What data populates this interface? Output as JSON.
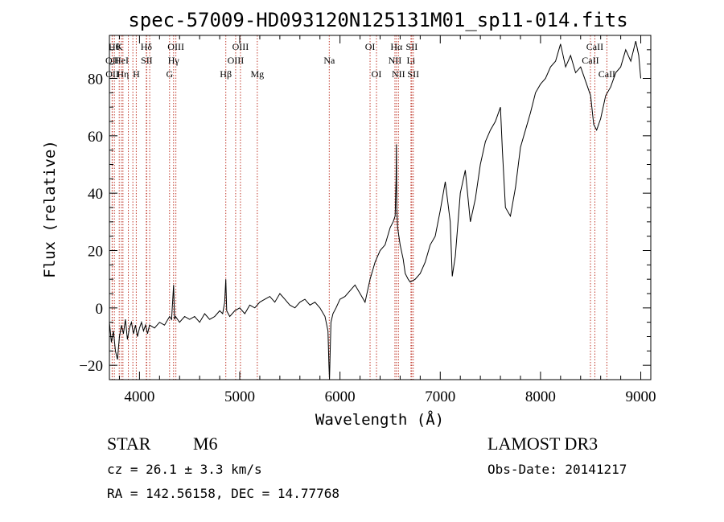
{
  "chart_data": {
    "type": "line",
    "title": "spec-57009-HD093120N125131M01_sp11-014.fits",
    "xlabel": "Wavelength (Å)",
    "ylabel": "Flux (relative)",
    "xlim": [
      3700,
      9100
    ],
    "ylim": [
      -25,
      95
    ],
    "xticks": [
      4000,
      5000,
      6000,
      7000,
      8000,
      9000
    ],
    "yticks": [
      -20,
      0,
      20,
      40,
      60,
      80
    ],
    "grid": false,
    "series": [
      {
        "name": "spectrum",
        "x": [
          3700,
          3720,
          3740,
          3760,
          3780,
          3800,
          3820,
          3840,
          3860,
          3880,
          3900,
          3920,
          3940,
          3960,
          3980,
          4000,
          4020,
          4040,
          4060,
          4080,
          4100,
          4150,
          4200,
          4250,
          4300,
          4320,
          4340,
          4350,
          4360,
          4380,
          4400,
          4450,
          4500,
          4550,
          4600,
          4650,
          4700,
          4750,
          4800,
          4830,
          4850,
          4861,
          4870,
          4900,
          4950,
          5000,
          5050,
          5100,
          5150,
          5200,
          5250,
          5300,
          5350,
          5400,
          5450,
          5500,
          5550,
          5600,
          5650,
          5700,
          5750,
          5800,
          5850,
          5880,
          5890,
          5895,
          5900,
          5910,
          5930,
          5960,
          6000,
          6050,
          6100,
          6150,
          6200,
          6250,
          6300,
          6350,
          6400,
          6450,
          6500,
          6530,
          6550,
          6560,
          6563,
          6566,
          6575,
          6600,
          6630,
          6650,
          6680,
          6700,
          6750,
          6800,
          6850,
          6900,
          6950,
          7000,
          7050,
          7100,
          7120,
          7150,
          7200,
          7250,
          7300,
          7350,
          7400,
          7450,
          7500,
          7550,
          7580,
          7600,
          7620,
          7650,
          7700,
          7750,
          7800,
          7850,
          7900,
          7950,
          8000,
          8050,
          8100,
          8150,
          8200,
          8250,
          8300,
          8350,
          8400,
          8450,
          8500,
          8530,
          8560,
          8600,
          8650,
          8700,
          8750,
          8800,
          8850,
          8900,
          8950,
          8980,
          9000
        ],
        "y": [
          -5,
          -12,
          -8,
          -15,
          -18,
          -10,
          -6,
          -9,
          -4,
          -11,
          -7,
          -5,
          -9,
          -6,
          -10,
          -7,
          -5,
          -8,
          -6,
          -9,
          -6,
          -7,
          -5,
          -6,
          -3,
          -4,
          8,
          -4,
          -3,
          -4,
          -5,
          -3,
          -4,
          -3,
          -5,
          -2,
          -4,
          -3,
          -1,
          -2,
          2,
          10,
          -1,
          -3,
          -1,
          0,
          -2,
          1,
          0,
          2,
          3,
          4,
          2,
          5,
          3,
          1,
          0,
          2,
          3,
          1,
          2,
          0,
          -3,
          -8,
          -20,
          -26,
          -18,
          -5,
          -2,
          0,
          3,
          4,
          6,
          8,
          5,
          2,
          10,
          16,
          20,
          22,
          28,
          30,
          32,
          45,
          57,
          35,
          28,
          22,
          17,
          12,
          10,
          9,
          10,
          12,
          16,
          22,
          25,
          34,
          44,
          30,
          11,
          18,
          40,
          48,
          30,
          38,
          50,
          58,
          62,
          65,
          68,
          70,
          55,
          35,
          32,
          42,
          56,
          62,
          68,
          75,
          78,
          80,
          84,
          86,
          92,
          84,
          88,
          82,
          84,
          79,
          74,
          64,
          62,
          66,
          74,
          77,
          82,
          84,
          90,
          86,
          93,
          88,
          80
        ]
      }
    ],
    "line_markers": [
      {
        "lambda": 3750,
        "label": "Hθ",
        "row": 0
      },
      {
        "lambda": 3727,
        "label": "OII",
        "row": 1
      },
      {
        "lambda": 3729,
        "label": "OII",
        "row": 2
      },
      {
        "lambda": 3798,
        "label": "K",
        "row": 0
      },
      {
        "lambda": 3820,
        "label": "HeI",
        "row": 1
      },
      {
        "lambda": 3835,
        "label": "Hη",
        "row": 2
      },
      {
        "lambda": 3889,
        "label": "",
        "row": -1
      },
      {
        "lambda": 3934,
        "label": "",
        "row": -1
      },
      {
        "lambda": 3968,
        "label": "H",
        "row": 2
      },
      {
        "lambda": 4068,
        "label": "Hδ",
        "row": 0
      },
      {
        "lambda": 4072,
        "label": "SII",
        "row": 1
      },
      {
        "lambda": 4102,
        "label": "",
        "row": -1
      },
      {
        "lambda": 4300,
        "label": "G",
        "row": 2
      },
      {
        "lambda": 4340,
        "label": "Hγ",
        "row": 1
      },
      {
        "lambda": 4363,
        "label": "OIII",
        "row": 0
      },
      {
        "lambda": 4861,
        "label": "Hβ",
        "row": 2
      },
      {
        "lambda": 4959,
        "label": "OIII",
        "row": 1
      },
      {
        "lambda": 5007,
        "label": "OIII",
        "row": 0
      },
      {
        "lambda": 5175,
        "label": "Mg",
        "row": 2
      },
      {
        "lambda": 5893,
        "label": "Na",
        "row": 1
      },
      {
        "lambda": 6300,
        "label": "OI",
        "row": 0
      },
      {
        "lambda": 6364,
        "label": "OI",
        "row": 2
      },
      {
        "lambda": 6548,
        "label": "NII",
        "row": 1
      },
      {
        "lambda": 6563,
        "label": "Hα",
        "row": 0
      },
      {
        "lambda": 6583,
        "label": "NII",
        "row": 2
      },
      {
        "lambda": 6708,
        "label": "Li",
        "row": 1
      },
      {
        "lambda": 6716,
        "label": "SII",
        "row": 0
      },
      {
        "lambda": 6731,
        "label": "SII",
        "row": 2
      },
      {
        "lambda": 8498,
        "label": "CaII",
        "row": 1
      },
      {
        "lambda": 8542,
        "label": "CaII",
        "row": 0
      },
      {
        "lambda": 8662,
        "label": "CaII",
        "row": 2
      }
    ]
  },
  "info": {
    "object_class": "STAR",
    "subclass": "M6",
    "survey": "LAMOST DR3",
    "cz": "cz = 26.1 ± 3.3 km/s",
    "obs_date": "Obs-Date: 20141217",
    "radec": "RA = 142.56158, DEC =  14.77768"
  },
  "colors": {
    "marker_line": "#c0392b",
    "spectrum": "#000000"
  }
}
